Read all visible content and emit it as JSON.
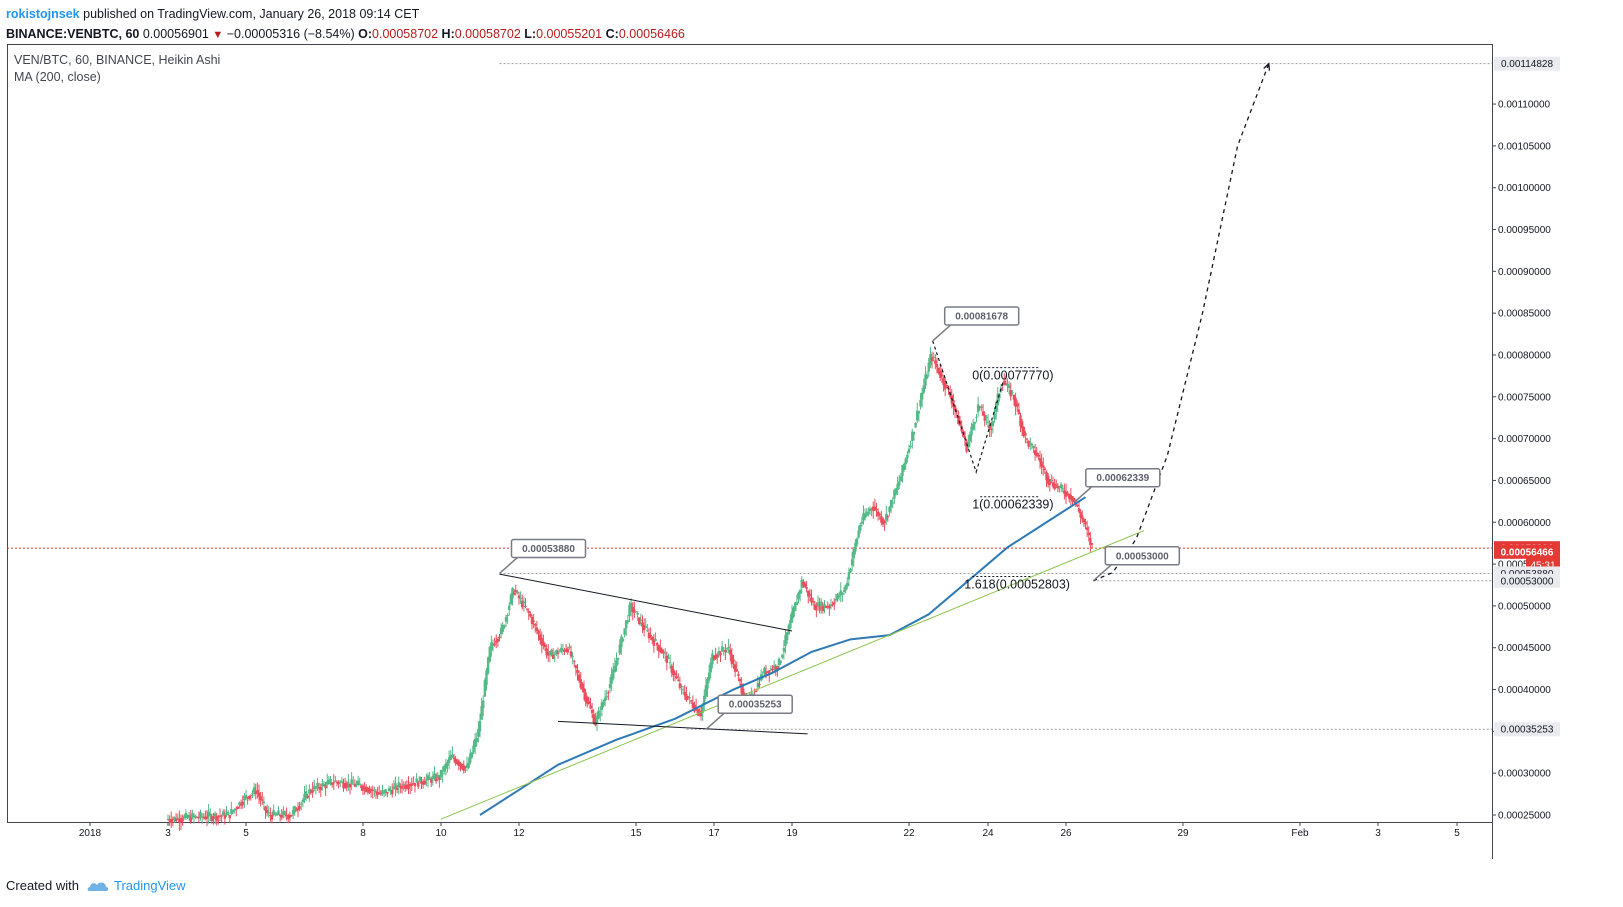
{
  "header": {
    "author": "rokistojnsek",
    "published_text": "published on TradingView.com, January 26, 2018 09:14 CET",
    "symbol": "BINANCE:VENBTC, 60",
    "last": "0.00056901",
    "change": "−0.00005316 (−8.54%)",
    "o_label": "O:",
    "o_value": "0.00058702",
    "h_label": "H:",
    "h_value": "0.00058702",
    "l_label": "L:",
    "l_value": "0.00055201",
    "c_label": "C:",
    "c_value": "0.00056466"
  },
  "legend": {
    "line1": "VEN/BTC, 60, BINANCE, Heikin Ashi",
    "line2": "MA (200, close)"
  },
  "footer": {
    "created_with": "Created with",
    "brand": "TradingView"
  },
  "colors": {
    "up": "#53b987",
    "down": "#eb4d5c",
    "ma": "#2e7ab6",
    "trend": "#8bc34a",
    "last_price": "#e53935",
    "dotted": "#9e9e9e"
  },
  "chart_data": {
    "type": "candlestick",
    "style": "Heikin Ashi",
    "x_ticks": [
      "2018",
      "3",
      "5",
      "8",
      "10",
      "12",
      "15",
      "17",
      "19",
      "22",
      "24",
      "26",
      "29",
      "Feb",
      "3",
      "5"
    ],
    "y_ticks": [
      "0.00025000",
      "0.00030000",
      "0.00035000",
      "0.00040000",
      "0.00045000",
      "0.00050000",
      "0.00055000",
      "0.00060000",
      "0.00065000",
      "0.00070000",
      "0.00075000",
      "0.00080000",
      "0.00085000",
      "0.00090000",
      "0.00095000",
      "0.00100000",
      "0.00105000",
      "0.00110000"
    ],
    "ylim": [
      0.000245,
      0.00117
    ],
    "price_path": [
      [
        3.0,
        0.000245
      ],
      [
        4.6,
        0.00025
      ],
      [
        5.0,
        0.00027
      ],
      [
        5.3,
        0.00028
      ],
      [
        5.6,
        0.00025
      ],
      [
        6.2,
        0.00025
      ],
      [
        6.7,
        0.00028
      ],
      [
        7.3,
        0.00029
      ],
      [
        8.0,
        0.000285
      ],
      [
        8.5,
        0.000275
      ],
      [
        9.0,
        0.000285
      ],
      [
        10.0,
        0.000295
      ],
      [
        10.3,
        0.00032
      ],
      [
        10.7,
        0.000305
      ],
      [
        11.0,
        0.00035
      ],
      [
        11.3,
        0.00045
      ],
      [
        11.6,
        0.00047
      ],
      [
        11.9,
        0.00052
      ],
      [
        12.3,
        0.00049
      ],
      [
        12.8,
        0.00044
      ],
      [
        13.3,
        0.00045
      ],
      [
        13.6,
        0.00041
      ],
      [
        14.0,
        0.00036
      ],
      [
        14.4,
        0.00041
      ],
      [
        14.9,
        0.0005
      ],
      [
        15.3,
        0.00047
      ],
      [
        15.8,
        0.00044
      ],
      [
        16.2,
        0.0004
      ],
      [
        16.7,
        0.00037
      ],
      [
        17.0,
        0.00044
      ],
      [
        17.4,
        0.00045
      ],
      [
        17.9,
        0.00038
      ],
      [
        18.3,
        0.00042
      ],
      [
        18.7,
        0.00043
      ],
      [
        19.0,
        0.00048
      ],
      [
        19.3,
        0.00053
      ],
      [
        19.6,
        0.0005
      ],
      [
        20.0,
        0.0005
      ],
      [
        20.4,
        0.00052
      ],
      [
        20.8,
        0.0006
      ],
      [
        21.1,
        0.00062
      ],
      [
        21.4,
        0.0006
      ],
      [
        21.8,
        0.00065
      ],
      [
        22.1,
        0.0007
      ],
      [
        22.4,
        0.00076
      ],
      [
        22.6,
        0.0008
      ],
      [
        22.8,
        0.00078
      ],
      [
        23.1,
        0.00075
      ],
      [
        23.5,
        0.00069
      ],
      [
        23.8,
        0.00074
      ],
      [
        24.1,
        0.00071
      ],
      [
        24.4,
        0.00077
      ],
      [
        24.7,
        0.00075
      ],
      [
        25.0,
        0.0007
      ],
      [
        25.3,
        0.00068
      ],
      [
        25.6,
        0.00065
      ],
      [
        25.9,
        0.00064
      ],
      [
        26.2,
        0.00063
      ],
      [
        26.5,
        0.0006
      ],
      [
        26.7,
        0.00057
      ]
    ],
    "ma200": [
      [
        11.0,
        0.00025
      ],
      [
        12.0,
        0.00028
      ],
      [
        13.0,
        0.00031
      ],
      [
        14.5,
        0.00034
      ],
      [
        16.0,
        0.000365
      ],
      [
        17.5,
        0.0004
      ],
      [
        18.5,
        0.00042
      ],
      [
        19.5,
        0.000445
      ],
      [
        20.5,
        0.00046
      ],
      [
        21.5,
        0.000465
      ],
      [
        22.5,
        0.00049
      ],
      [
        23.5,
        0.00053
      ],
      [
        24.5,
        0.00057
      ],
      [
        25.5,
        0.0006
      ],
      [
        26.5,
        0.00063
      ]
    ],
    "trendline_green": [
      [
        10.0,
        0.000245
      ],
      [
        28.0,
        0.00059
      ]
    ],
    "triangle_upper": [
      [
        11.5,
        0.000538
      ],
      [
        19.0,
        0.00047
      ]
    ],
    "triangle_lower": [
      [
        13.0,
        0.000362
      ],
      [
        19.4,
        0.000347
      ]
    ],
    "projection_path": [
      [
        26.7,
        0.00053
      ],
      [
        27.2,
        0.00054
      ],
      [
        27.8,
        0.00058
      ],
      [
        28.6,
        0.00068
      ],
      [
        29.5,
        0.00085
      ],
      [
        30.4,
        0.00105
      ],
      [
        31.2,
        0.00114828
      ]
    ],
    "fib_swing": [
      [
        22.6,
        0.00081678
      ],
      [
        23.7,
        0.00066
      ],
      [
        24.4,
        0.00077
      ]
    ],
    "callouts": [
      {
        "text": "0.00053880",
        "x": 11.5,
        "y": 0.0005388
      },
      {
        "text": "0.00035253",
        "x": 16.8,
        "y": 0.00035253
      },
      {
        "text": "0.00081678",
        "x": 22.6,
        "y": 0.00081678
      },
      {
        "text": "0.00062339",
        "x": 26.2,
        "y": 0.00062339
      },
      {
        "text": "0.00053000",
        "x": 26.7,
        "y": 0.00053
      }
    ],
    "fib_labels": [
      {
        "text": "0(0.00077770)",
        "x": 23.6,
        "y": 0.0007777
      },
      {
        "text": "1(0.00062339)",
        "x": 23.6,
        "y": 0.00062339
      },
      {
        "text": "1.618(0.00052803)",
        "x": 23.4,
        "y": 0.00052803
      }
    ],
    "price_labels": [
      {
        "text": "0.00114828",
        "y": 0.00114828,
        "kind": "level"
      },
      {
        "text": "0.00056901",
        "y": 0.00056901,
        "kind": "last"
      },
      {
        "text": "0.00056466",
        "y": 0.00056466,
        "kind": "last"
      },
      {
        "text": "45:31",
        "y": 0.000549,
        "kind": "timer"
      },
      {
        "text": "0.00053880",
        "y": 0.0005388,
        "kind": "level"
      },
      {
        "text": "0.00053000",
        "y": 0.00053,
        "kind": "level"
      },
      {
        "text": "0.00035253",
        "y": 0.00035253,
        "kind": "level"
      }
    ],
    "last_price": 0.00056901
  }
}
